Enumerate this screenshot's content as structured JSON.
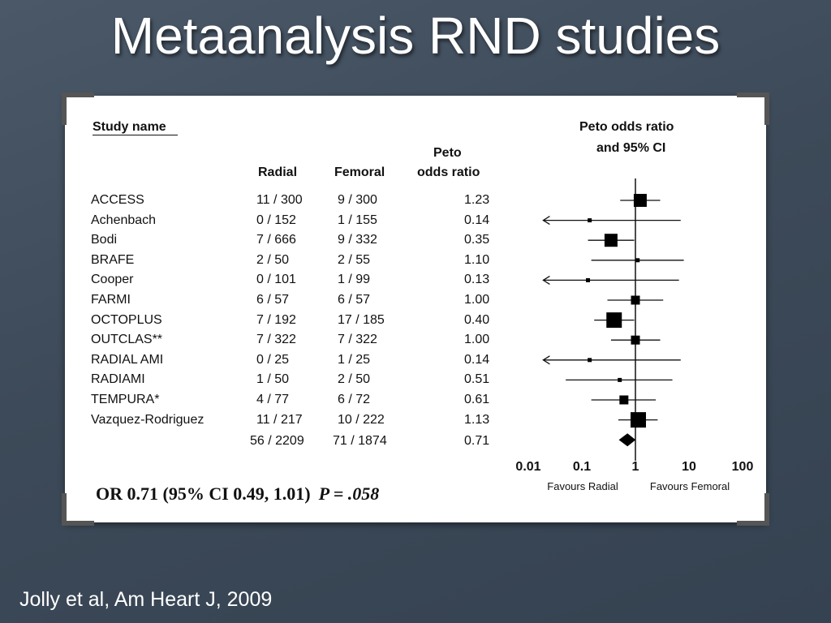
{
  "slide": {
    "title": "Metaanalysis RND studies",
    "citation": "Jolly et al, Am Heart J, 2009"
  },
  "table": {
    "study_header": "Study name",
    "radial_header": "Radial",
    "femoral_header": "Femoral",
    "peto_header_1": "Peto",
    "peto_header_2": "odds ratio",
    "plot_header_1": "Peto odds ratio",
    "plot_header_2": "and 95% CI",
    "rows": [
      {
        "study": "ACCESS",
        "radial": "11 / 300",
        "femoral": "9 / 300",
        "or": "1.23"
      },
      {
        "study": "Achenbach",
        "radial": "0 / 152",
        "femoral": "1 / 155",
        "or": "0.14"
      },
      {
        "study": "Bodi",
        "radial": "7 / 666",
        "femoral": "9 / 332",
        "or": "0.35"
      },
      {
        "study": "BRAFE",
        "radial": "2 / 50",
        "femoral": "2 / 55",
        "or": "1.10"
      },
      {
        "study": "Cooper",
        "radial": "0 / 101",
        "femoral": "1 / 99",
        "or": "0.13"
      },
      {
        "study": "FARMI",
        "radial": "6 / 57",
        "femoral": "6 / 57",
        "or": "1.00"
      },
      {
        "study": "OCTOPLUS",
        "radial": "7 / 192",
        "femoral": "17 / 185",
        "or": "0.40"
      },
      {
        "study": "OUTCLAS**",
        "radial": "7 / 322",
        "femoral": "7 / 322",
        "or": "1.00"
      },
      {
        "study": "RADIAL AMI",
        "radial": "0 / 25",
        "femoral": "1 / 25",
        "or": "0.14"
      },
      {
        "study": "RADIAMI",
        "radial": "1 / 50",
        "femoral": "2 / 50",
        "or": "0.51"
      },
      {
        "study": "TEMPURA*",
        "radial": "4 / 77",
        "femoral": "6 / 72",
        "or": "0.61"
      },
      {
        "study": "Vazquez-Rodriguez",
        "radial": "11 / 217",
        "femoral": "10 / 222",
        "or": "1.13"
      }
    ],
    "total": {
      "radial": "56 / 2209",
      "femoral": "71 / 1874",
      "or": "0.71"
    },
    "summary_text": "OR 0.71 (95% CI 0.49, 1.01)",
    "summary_p": "P = .058"
  },
  "chart_data": {
    "type": "forest",
    "x_scale": "log",
    "xlim": [
      0.01,
      100
    ],
    "x_ticks": [
      "0.01",
      "0.1",
      "1",
      "10",
      "100"
    ],
    "favours_left": "Favours Radial",
    "favours_right": "Favours Femoral",
    "reference_line": 1,
    "studies": [
      {
        "name": "ACCESS",
        "or": 1.23,
        "lo": 0.52,
        "hi": 2.9,
        "weight": 3
      },
      {
        "name": "Achenbach",
        "or": 0.14,
        "lo": 0.01,
        "hi": 7.0,
        "weight": 1,
        "lo_truncated": true
      },
      {
        "name": "Bodi",
        "or": 0.35,
        "lo": 0.13,
        "hi": 0.95,
        "weight": 3
      },
      {
        "name": "BRAFE",
        "or": 1.1,
        "lo": 0.15,
        "hi": 8.0,
        "weight": 1
      },
      {
        "name": "Cooper",
        "or": 0.13,
        "lo": 0.01,
        "hi": 6.5,
        "weight": 1,
        "lo_truncated": true
      },
      {
        "name": "FARMI",
        "or": 1.0,
        "lo": 0.3,
        "hi": 3.3,
        "weight": 2
      },
      {
        "name": "OCTOPLUS",
        "or": 0.4,
        "lo": 0.17,
        "hi": 0.95,
        "weight": 4
      },
      {
        "name": "OUTCLAS**",
        "or": 1.0,
        "lo": 0.35,
        "hi": 2.9,
        "weight": 2
      },
      {
        "name": "RADIAL AMI",
        "or": 0.14,
        "lo": 0.01,
        "hi": 7.0,
        "weight": 1,
        "lo_truncated": true
      },
      {
        "name": "RADIAMI",
        "or": 0.51,
        "lo": 0.05,
        "hi": 4.9,
        "weight": 1
      },
      {
        "name": "TEMPURA*",
        "or": 0.61,
        "lo": 0.15,
        "hi": 2.4,
        "weight": 2
      },
      {
        "name": "Vazquez-Rodriguez",
        "or": 1.13,
        "lo": 0.48,
        "hi": 2.6,
        "weight": 4
      }
    ],
    "pooled": {
      "or": 0.71,
      "lo": 0.49,
      "hi": 1.01
    }
  }
}
